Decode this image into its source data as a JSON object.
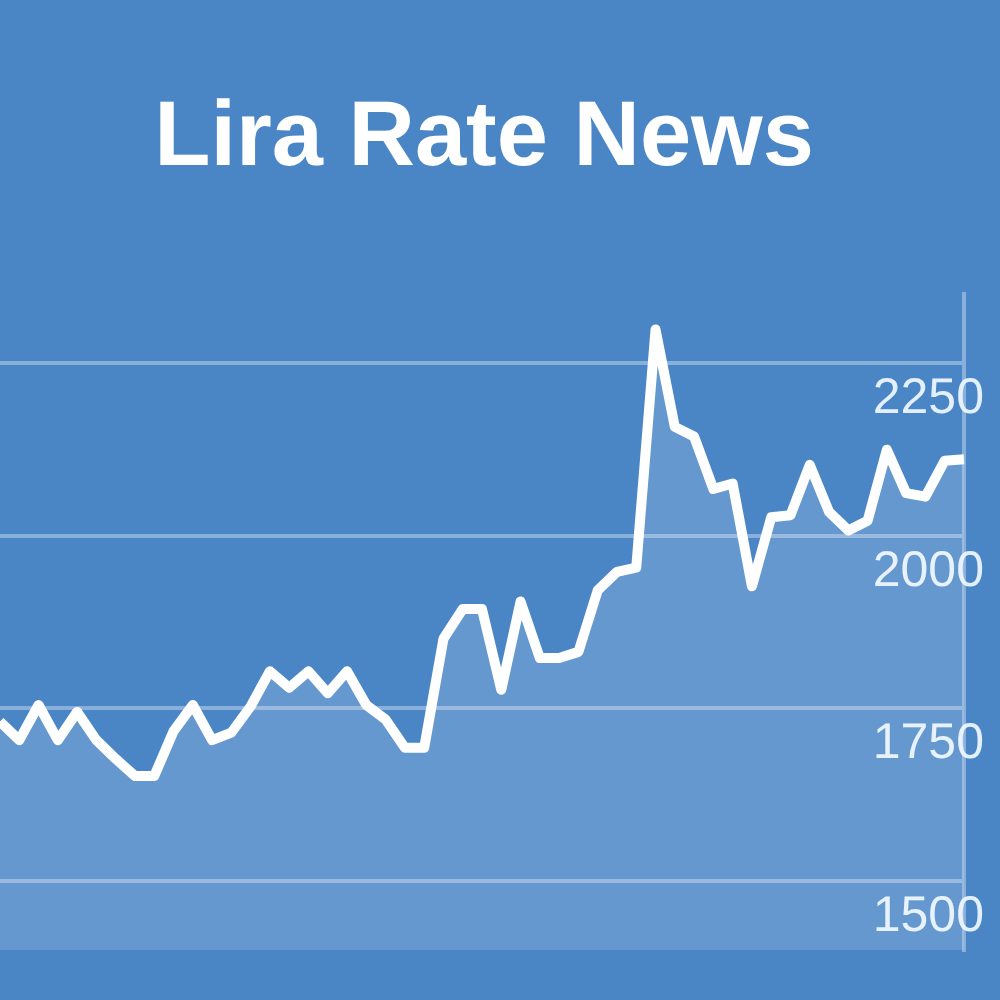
{
  "chart_data": {
    "type": "area",
    "title": "Lira Rate News",
    "categories": [
      null,
      null,
      null,
      null,
      null,
      null,
      null,
      null,
      null,
      null,
      null,
      null,
      null,
      null,
      null,
      null,
      null,
      null,
      null,
      null,
      null,
      null,
      null,
      null,
      null,
      null,
      null,
      null,
      null,
      null,
      null,
      null,
      null,
      null,
      null,
      null,
      null,
      null,
      null,
      null,
      null,
      null,
      null,
      null,
      null,
      null,
      null,
      null,
      null,
      null,
      null
    ],
    "series": [
      {
        "color": "#ffffff",
        "values": [
          1731,
          1704,
          1755,
          1704,
          1745,
          1704,
          1677,
          1652,
          1652,
          1717,
          1755,
          1704,
          1715,
          1753,
          1804,
          1780,
          1804,
          1772,
          1804,
          1755,
          1734,
          1693,
          1693,
          1851,
          1894,
          1894,
          1777,
          1905,
          1823,
          1823,
          1832,
          1921,
          1948,
          1954,
          2299,
          2158,
          2144,
          2068,
          2076,
          1927,
          2027,
          2030,
          2103,
          2035,
          2008,
          2022,
          2125,
          2062,
          2057,
          2109,
          2111
        ]
      }
    ],
    "ylim": [
      1400,
      2350
    ],
    "yticks": [
      1500,
      1750,
      2000,
      2250
    ],
    "grid": "y"
  }
}
